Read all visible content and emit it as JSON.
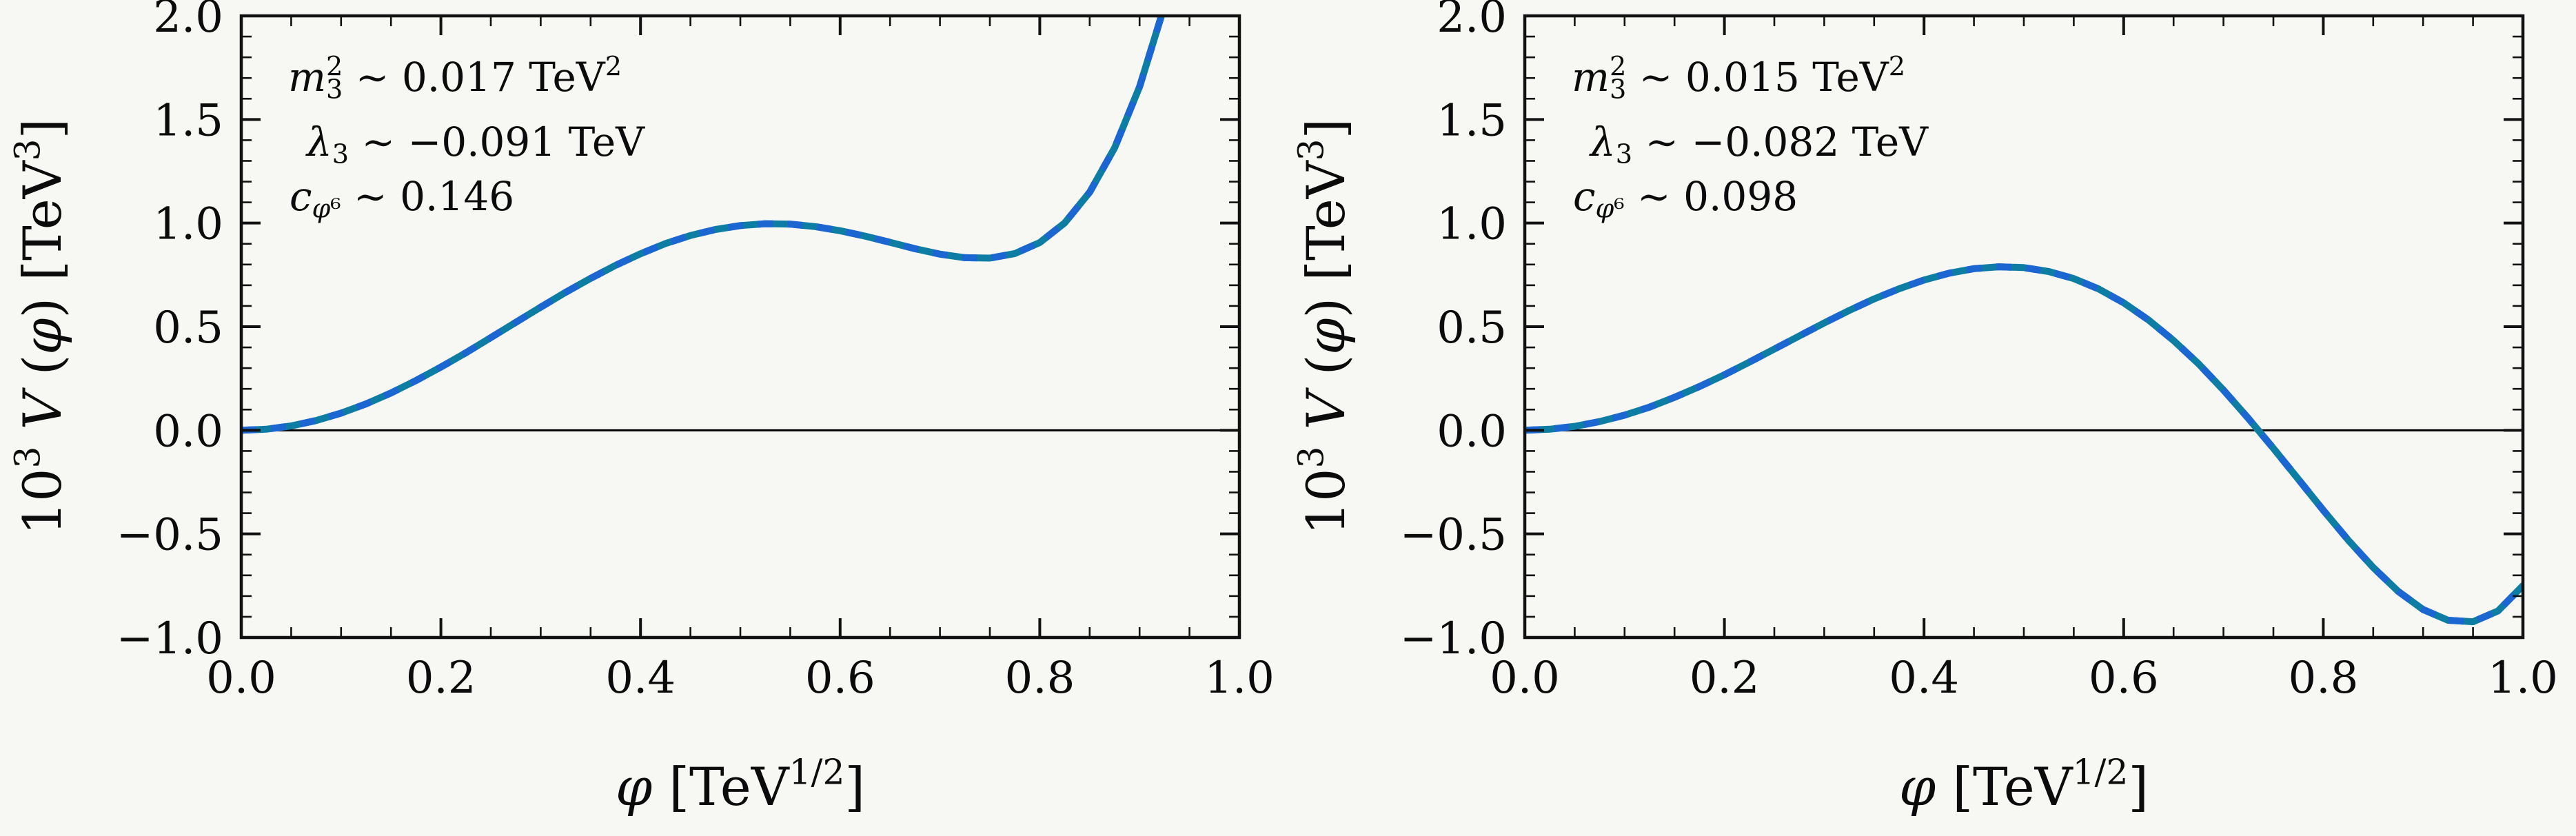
{
  "figure": {
    "background": "#f7f7f4",
    "text_color": "#0b0b0b",
    "spine_color": "#111111",
    "zero_line_color": "#000000"
  },
  "chart_data": [
    {
      "type": "line",
      "panel": "left",
      "xlabel": "*φ* [TeV^{1/2}]",
      "ylabel": "10^{3} *V* (*φ*) [TeV^{3}]",
      "xlim": [
        0.0,
        1.0
      ],
      "ylim": [
        -1.0,
        2.0
      ],
      "grid": false,
      "zero_line": true,
      "xticks": {
        "values": [
          0.0,
          0.2,
          0.4,
          0.6,
          0.8,
          1.0
        ],
        "labels": [
          "0.0",
          "0.2",
          "0.4",
          "0.6",
          "0.8",
          "1.0"
        ],
        "minor_step": 0.05
      },
      "yticks": {
        "values": [
          -1.0,
          -0.5,
          0.0,
          0.5,
          1.0,
          1.5,
          2.0
        ],
        "labels": [
          "−1.0",
          "−0.5",
          "0.0",
          "0.5",
          "1.0",
          "1.5",
          "2.0"
        ],
        "minor_step": 0.1
      },
      "annotations": [
        "*m*_{3}^{2} ∼ 0.017 TeV^{2}",
        "*λ*_{3} ∼ −0.091 TeV",
        "*c*_{*φ*⁶} ∼ 0.146"
      ],
      "params": {
        "m3_squared_TeV2": 0.017,
        "lambda3_TeV": -0.091,
        "c_phi6": 0.146
      },
      "series": [
        {
          "name": "scalar-potential",
          "base_color": "#0d7da4",
          "dash_color": "#1c66d2",
          "line_width": 10,
          "x": [
            0,
            0.025,
            0.05,
            0.075,
            0.1,
            0.125,
            0.15,
            0.175,
            0.2,
            0.225,
            0.25,
            0.275,
            0.3,
            0.325,
            0.35,
            0.375,
            0.4,
            0.425,
            0.45,
            0.475,
            0.5,
            0.525,
            0.55,
            0.575,
            0.6,
            0.625,
            0.65,
            0.675,
            0.7,
            0.725,
            0.75,
            0.775,
            0.8,
            0.825,
            0.85,
            0.875,
            0.9,
            0.925,
            0.95
          ],
          "y": [
            0.0,
            0.005,
            0.021,
            0.047,
            0.083,
            0.127,
            0.18,
            0.24,
            0.305,
            0.374,
            0.447,
            0.521,
            0.594,
            0.666,
            0.733,
            0.796,
            0.852,
            0.901,
            0.94,
            0.969,
            0.988,
            0.997,
            0.995,
            0.983,
            0.963,
            0.937,
            0.907,
            0.876,
            0.85,
            0.833,
            0.831,
            0.853,
            0.906,
            1.001,
            1.149,
            1.363,
            1.658,
            2.049,
            2.557
          ]
        }
      ]
    },
    {
      "type": "line",
      "panel": "right",
      "xlabel": "*φ* [TeV^{1/2}]",
      "ylabel": "10^{3} *V* (*φ*) [TeV^{3}]",
      "xlim": [
        0.0,
        1.0
      ],
      "ylim": [
        -1.0,
        2.0
      ],
      "grid": false,
      "zero_line": true,
      "xticks": {
        "values": [
          0.0,
          0.2,
          0.4,
          0.6,
          0.8,
          1.0
        ],
        "labels": [
          "0.0",
          "0.2",
          "0.4",
          "0.6",
          "0.8",
          "1.0"
        ],
        "minor_step": 0.05
      },
      "yticks": {
        "values": [
          -1.0,
          -0.5,
          0.0,
          0.5,
          1.0,
          1.5,
          2.0
        ],
        "labels": [
          "−1.0",
          "−0.5",
          "0.0",
          "0.5",
          "1.0",
          "1.5",
          "2.0"
        ],
        "minor_step": 0.1
      },
      "annotations": [
        "*m*_{3}^{2} ∼ 0.015 TeV^{2}",
        "*λ*_{3} ∼ −0.082 TeV",
        "*c*_{*φ*⁶} ∼ 0.098"
      ],
      "params": {
        "m3_squared_TeV2": 0.015,
        "lambda3_TeV": -0.082,
        "c_phi6": 0.098
      },
      "series": [
        {
          "name": "scalar-potential",
          "base_color": "#0d7da4",
          "dash_color": "#1c66d2",
          "line_width": 10,
          "x": [
            0,
            0.025,
            0.05,
            0.075,
            0.1,
            0.125,
            0.15,
            0.175,
            0.2,
            0.225,
            0.25,
            0.275,
            0.3,
            0.325,
            0.35,
            0.375,
            0.4,
            0.425,
            0.45,
            0.475,
            0.5,
            0.525,
            0.55,
            0.575,
            0.6,
            0.625,
            0.65,
            0.675,
            0.7,
            0.725,
            0.75,
            0.775,
            0.8,
            0.825,
            0.85,
            0.875,
            0.9,
            0.925,
            0.95,
            0.975,
            1.0
          ],
          "y": [
            0.0,
            0.005,
            0.019,
            0.042,
            0.073,
            0.112,
            0.159,
            0.211,
            0.268,
            0.329,
            0.392,
            0.455,
            0.518,
            0.578,
            0.634,
            0.683,
            0.725,
            0.758,
            0.78,
            0.789,
            0.785,
            0.766,
            0.732,
            0.682,
            0.615,
            0.532,
            0.433,
            0.321,
            0.194,
            0.057,
            -0.087,
            -0.236,
            -0.386,
            -0.53,
            -0.662,
            -0.777,
            -0.865,
            -0.917,
            -0.924,
            -0.872,
            -0.75
          ]
        }
      ]
    }
  ]
}
